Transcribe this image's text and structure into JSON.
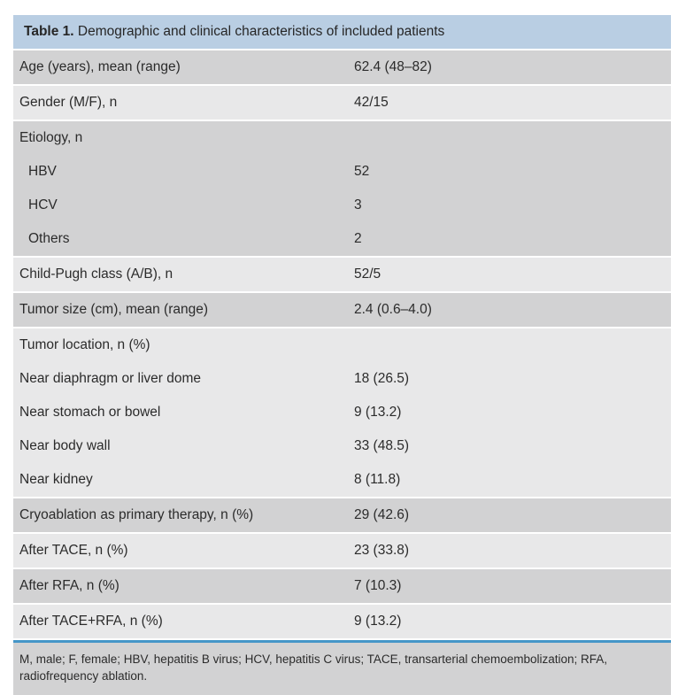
{
  "colors": {
    "header_bg": "#b9cee3",
    "row_dark": "#d2d2d3",
    "row_light": "#e8e8e9",
    "footnote_bg": "#d2d2d3",
    "divider_blue": "#4596c8",
    "text": "#2b2b2b"
  },
  "table": {
    "title_bold": "Table 1.",
    "title_rest": " Demographic and clinical characteristics of included patients",
    "groups": [
      {
        "shade": "dark",
        "rows": [
          {
            "label": "Age (years), mean (range)",
            "value": "62.4 (48–82)",
            "indent": false
          }
        ]
      },
      {
        "shade": "light",
        "rows": [
          {
            "label": "Gender (M/F), n",
            "value": "42/15",
            "indent": false
          }
        ]
      },
      {
        "shade": "dark",
        "rows": [
          {
            "label": "Etiology, n",
            "value": "",
            "indent": false
          },
          {
            "label": "HBV",
            "value": "52",
            "indent": true
          },
          {
            "label": "HCV",
            "value": "3",
            "indent": true
          },
          {
            "label": "Others",
            "value": "2",
            "indent": true
          }
        ]
      },
      {
        "shade": "light",
        "rows": [
          {
            "label": "Child-Pugh class (A/B), n",
            "value": "52/5",
            "indent": false
          }
        ]
      },
      {
        "shade": "dark",
        "rows": [
          {
            "label": "Tumor size (cm), mean (range)",
            "value": "2.4 (0.6–4.0)",
            "indent": false
          }
        ]
      },
      {
        "shade": "light",
        "rows": [
          {
            "label": "Tumor location, n (%)",
            "value": "",
            "indent": false
          },
          {
            "label": "Near diaphragm or liver dome",
            "value": "18 (26.5)",
            "indent": false
          },
          {
            "label": "Near stomach or bowel",
            "value": "9 (13.2)",
            "indent": false
          },
          {
            "label": "Near body wall",
            "value": "33 (48.5)",
            "indent": false
          },
          {
            "label": "Near kidney",
            "value": "8 (11.8)",
            "indent": false
          }
        ]
      },
      {
        "shade": "dark",
        "rows": [
          {
            "label": "Cryoablation as primary therapy, n (%)",
            "value": "29 (42.6)",
            "indent": false
          }
        ]
      },
      {
        "shade": "light",
        "rows": [
          {
            "label": "After TACE, n (%)",
            "value": "23 (33.8)",
            "indent": false
          }
        ]
      },
      {
        "shade": "dark",
        "rows": [
          {
            "label": "After RFA, n (%)",
            "value": "7 (10.3)",
            "indent": false
          }
        ]
      },
      {
        "shade": "light",
        "rows": [
          {
            "label": "After TACE+RFA, n (%)",
            "value": "9 (13.2)",
            "indent": false
          }
        ]
      }
    ],
    "footnote": "M, male; F, female; HBV, hepatitis B virus; HCV, hepatitis C virus; TACE, transarterial chemoembolization; RFA, radiofrequency ablation."
  }
}
